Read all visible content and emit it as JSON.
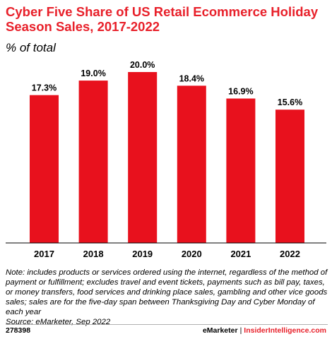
{
  "chart_data": {
    "type": "bar",
    "title": "Cyber Five Share of US Retail Ecommerce Holiday Season Sales, 2017-2022",
    "subtitle": "% of total",
    "categories": [
      "2017",
      "2018",
      "2019",
      "2020",
      "2021",
      "2022"
    ],
    "values": [
      17.3,
      19.0,
      20.0,
      18.4,
      16.9,
      15.6
    ],
    "value_labels": [
      "17.3%",
      "19.0%",
      "20.0%",
      "18.4%",
      "16.9%",
      "15.6%"
    ],
    "xlabel": "",
    "ylabel": "",
    "ylim": [
      0,
      20
    ],
    "grid": false,
    "legend": "none",
    "bar_color": "#e8111d"
  },
  "note": "Note: includes products or services ordered using the internet, regardless of the method of payment or fulfillment; excludes travel and event tickets, payments such as bill pay, taxes, or money transfers, food services and drinking place sales, gambling and other vice goods sales; sales are for the five-day span between Thanksgiving Day and Cyber Monday of each year",
  "source": "Source: eMarketer, Sep 2022",
  "footer": {
    "chart_id": "278398",
    "brand": "eMarketer",
    "separator": "|",
    "site": "InsiderIntelligence.com"
  }
}
